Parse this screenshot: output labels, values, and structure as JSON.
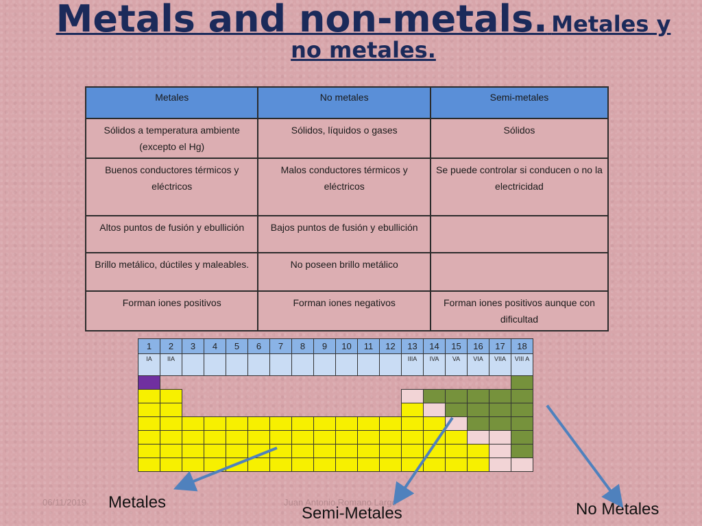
{
  "title": {
    "main": "Metals and non-metals.",
    "sub": "Metales y no metales."
  },
  "table": {
    "headers": [
      "Metales",
      "No metales",
      "Semi-metales"
    ],
    "rows": [
      [
        "Sólidos a temperatura ambiente (excepto el Hg)",
        "Sólidos, líquidos o gases",
        "Sólidos"
      ],
      [
        "Buenos conductores térmicos y eléctricos",
        "Malos conductores térmicos y eléctricos",
        "Se puede controlar si conducen o no la electricidad"
      ],
      [
        "Altos puntos de fusión y ebullición",
        "Bajos puntos de fusión y ebullición",
        ""
      ],
      [
        "Brillo metálico, dúctiles y maleables.",
        "No poseen brillo metálico",
        ""
      ],
      [
        "Forman iones positivos",
        "Forman iones negativos",
        "Forman iones positivos aunque con dificultad"
      ]
    ]
  },
  "periodic": {
    "groups": [
      "1",
      "2",
      "3",
      "4",
      "5",
      "6",
      "7",
      "8",
      "9",
      "10",
      "11",
      "12",
      "13",
      "14",
      "15",
      "16",
      "17",
      "18"
    ],
    "roman": [
      "IA",
      "IIA",
      "",
      "",
      "",
      "",
      "",
      "",
      "",
      "",
      "",
      "",
      "IIIA",
      "IVA",
      "VA",
      "VIA",
      "VIIA",
      "VIII A"
    ],
    "grid": [
      "h................n",
      "mm..........snnnnn",
      "mm..........msnnnn",
      "mmmmmmmmmmmmmmsnnn",
      "mmmmmmmmmmmmmmmssn",
      "mmmmmmmmmmmmmmmmsn",
      "mmmmmmmmmmmmmmmmss"
    ],
    "colors": {
      "metal": "#f7f000",
      "nonmetal": "#76923c",
      "semimetal": "#f2d4d6",
      "hydrogen": "#7030a0"
    }
  },
  "labels": {
    "metales": "Metales",
    "semimetales": "Semi-Metales",
    "nometales": "No Metales"
  },
  "footer": {
    "date": "06/11/2019",
    "author": "Juan Antonio Romano Largo"
  },
  "arrow_color": "#4f81bd"
}
